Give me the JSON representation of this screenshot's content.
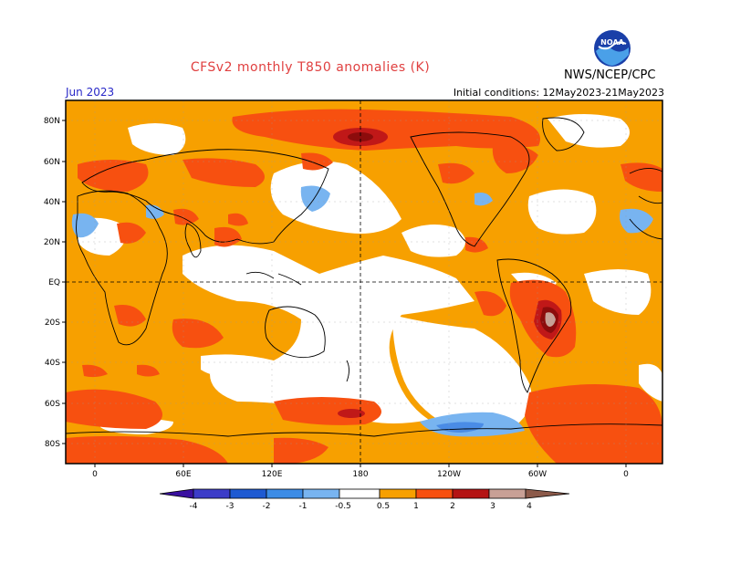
{
  "header": {
    "title": "CFSv2 monthly T850 anomalies (K)",
    "period": "Jun 2023",
    "initial_conditions": "Initial conditions: 12May2023-21May2023",
    "agency": "NWS/NCEP/CPC",
    "logo_text": "NOAA"
  },
  "map": {
    "lat_labels": [
      "80N",
      "60N",
      "40N",
      "20N",
      "EQ",
      "20S",
      "40S",
      "60S",
      "80S"
    ],
    "lon_labels": [
      "0",
      "60E",
      "120E",
      "180",
      "120W",
      "60W",
      "0"
    ],
    "colors": {
      "ocean_neutral": "#ffffff",
      "warm_05_1": "#f7a000",
      "warm_1_2": "#f75010",
      "warm_2_3": "#c01818",
      "warm_3_4": "#8c0c0c",
      "warm_4_plus": "#c8a096",
      "cool_-1_-05": "#78b4f0",
      "cool_-2_-1": "#4a8ce6"
    }
  },
  "colorbar": {
    "labels": [
      "-4",
      "-3",
      "-2",
      "-1",
      "-0.5",
      "0.5",
      "1",
      "2",
      "3",
      "4"
    ],
    "colors": [
      "#3a10a0",
      "#3c3cc8",
      "#1e5ad2",
      "#3c8ce6",
      "#78b4f0",
      "#ffffff",
      "#f7a000",
      "#f75010",
      "#b41414",
      "#8c0c0c",
      "#c8a096",
      "#8c5a4a"
    ]
  }
}
